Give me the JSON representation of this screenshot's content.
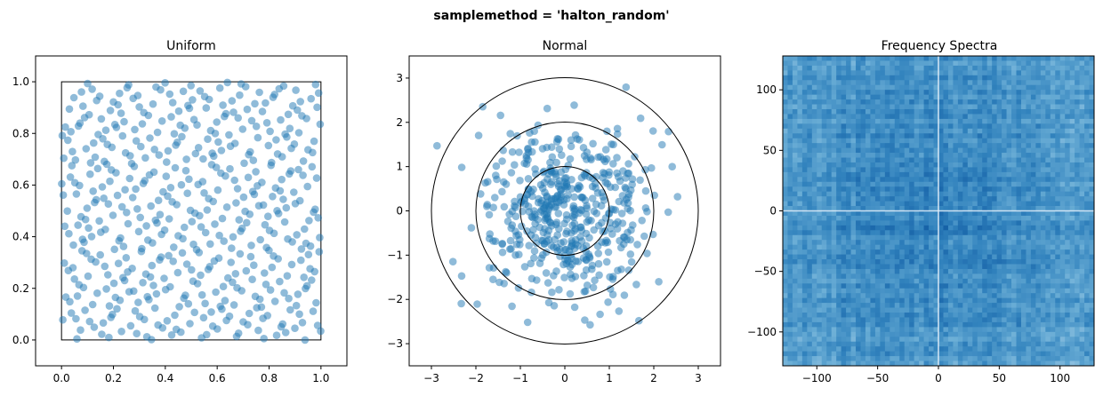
{
  "figure": {
    "suptitle": "samplemethod = 'halton_random'"
  },
  "chart_data": [
    {
      "type": "scatter",
      "title": "Uniform",
      "xlim": [
        -0.1,
        1.1
      ],
      "ylim": [
        -0.1,
        1.1
      ],
      "xticks": [
        "0.0",
        "0.2",
        "0.4",
        "0.6",
        "0.8",
        "1.0"
      ],
      "yticks": [
        "0.0",
        "0.2",
        "0.4",
        "0.6",
        "0.8",
        "1.0"
      ],
      "reference_square": [
        [
          0,
          0
        ],
        [
          1,
          0
        ],
        [
          1,
          1
        ],
        [
          0,
          1
        ]
      ],
      "n_points": 500,
      "distribution": "uniform on unit square (Halton sequence with random shift)",
      "point_color": "#1f77b4",
      "point_alpha": 0.5,
      "grid": false
    },
    {
      "type": "scatter",
      "title": "Normal",
      "xlim": [
        -3.5,
        3.5
      ],
      "ylim": [
        -3.5,
        3.5
      ],
      "xticks": [
        "−3",
        "−2",
        "−1",
        "0",
        "1",
        "2",
        "3"
      ],
      "yticks": [
        "−3",
        "−2",
        "−1",
        "0",
        "1",
        "2",
        "3"
      ],
      "reference_circles_radius": [
        1,
        2,
        3
      ],
      "n_points": 500,
      "distribution": "2D standard normal",
      "point_color": "#1f77b4",
      "point_alpha": 0.5,
      "grid": false
    },
    {
      "type": "heatmap",
      "title": "Frequency Spectra",
      "xlim": [
        -128,
        128
      ],
      "ylim": [
        -128,
        128
      ],
      "xticks": [
        "−100",
        "−50",
        "0",
        "50",
        "100"
      ],
      "yticks": [
        "100",
        "50",
        "0",
        "−50",
        "−100"
      ],
      "colormap": "Blues",
      "pattern": "noisy blue field, darker near the center, bright white cross along the zero axes"
    }
  ]
}
